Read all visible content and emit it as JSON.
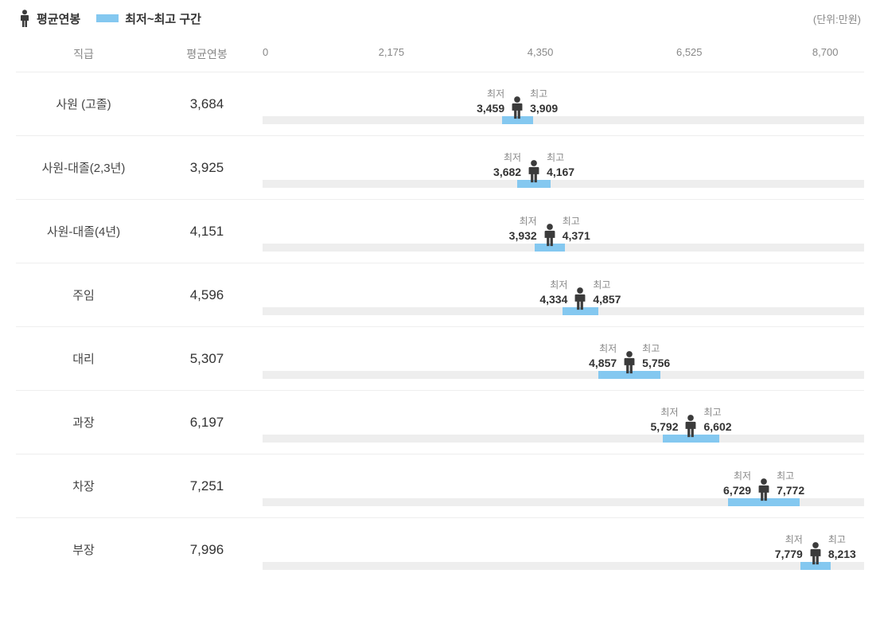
{
  "legend": {
    "avg_label": "평균연봉",
    "range_label": "최저~최고 구간"
  },
  "unit_label": "(단위:만원)",
  "columns": {
    "position": "직급",
    "avg": "평균연봉"
  },
  "min_label": "최저",
  "max_label": "최고",
  "chart": {
    "xmin": 0,
    "xmax": 8700,
    "ticks": [
      0,
      2175,
      4350,
      6525,
      8700
    ],
    "tick_labels": [
      "0",
      "2,175",
      "4,350",
      "6,525",
      "8,700"
    ],
    "track_color": "#eeeeee",
    "range_color": "#84c8f0",
    "person_color": "#3b3b3b",
    "border_color": "#eeeeee",
    "background_color": "#ffffff",
    "text_color": "#888888",
    "value_color": "#333333"
  },
  "rows": [
    {
      "position": "사원 (고졸)",
      "avg": 3684,
      "avg_fmt": "3,684",
      "min": 3459,
      "min_fmt": "3,459",
      "max": 3909,
      "max_fmt": "3,909"
    },
    {
      "position": "사원-대졸(2,3년)",
      "avg": 3925,
      "avg_fmt": "3,925",
      "min": 3682,
      "min_fmt": "3,682",
      "max": 4167,
      "max_fmt": "4,167"
    },
    {
      "position": "사원-대졸(4년)",
      "avg": 4151,
      "avg_fmt": "4,151",
      "min": 3932,
      "min_fmt": "3,932",
      "max": 4371,
      "max_fmt": "4,371"
    },
    {
      "position": "주임",
      "avg": 4596,
      "avg_fmt": "4,596",
      "min": 4334,
      "min_fmt": "4,334",
      "max": 4857,
      "max_fmt": "4,857"
    },
    {
      "position": "대리",
      "avg": 5307,
      "avg_fmt": "5,307",
      "min": 4857,
      "min_fmt": "4,857",
      "max": 5756,
      "max_fmt": "5,756"
    },
    {
      "position": "과장",
      "avg": 6197,
      "avg_fmt": "6,197",
      "min": 5792,
      "min_fmt": "5,792",
      "max": 6602,
      "max_fmt": "6,602"
    },
    {
      "position": "차장",
      "avg": 7251,
      "avg_fmt": "7,251",
      "min": 6729,
      "min_fmt": "6,729",
      "max": 7772,
      "max_fmt": "7,772"
    },
    {
      "position": "부장",
      "avg": 7996,
      "avg_fmt": "7,996",
      "min": 7779,
      "min_fmt": "7,779",
      "max": 8213,
      "max_fmt": "8,213"
    }
  ]
}
